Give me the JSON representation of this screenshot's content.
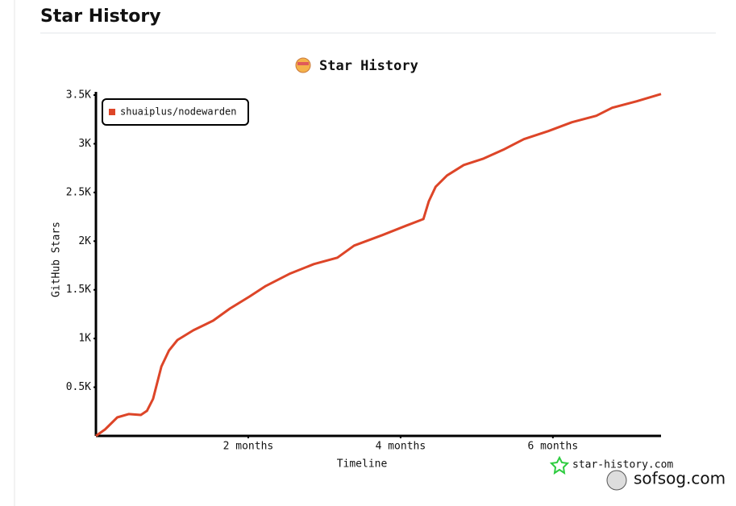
{
  "header": {
    "title": "Star History"
  },
  "chart_data": {
    "type": "line",
    "title": "Star History",
    "x_label": "Timeline",
    "y_label": "GitHub Stars",
    "x": [
      0,
      0.12,
      0.28,
      0.43,
      0.59,
      0.67,
      0.75,
      0.86,
      0.96,
      1.07,
      1.28,
      1.54,
      1.76,
      2.02,
      2.23,
      2.54,
      2.86,
      3.17,
      3.39,
      3.76,
      4.08,
      4.3,
      4.37,
      4.46,
      4.61,
      4.83,
      5.09,
      5.35,
      5.62,
      5.94,
      6.25,
      6.57,
      6.78,
      7.1,
      7.42
    ],
    "series": [
      {
        "name": "shuaiplus/nodewarden",
        "color": "#dd4528",
        "values": [
          0,
          66,
          190,
          224,
          215,
          257,
          381,
          712,
          878,
          985,
          1085,
          1184,
          1308,
          1432,
          1540,
          1664,
          1764,
          1830,
          1954,
          2062,
          2161,
          2227,
          2409,
          2558,
          2674,
          2782,
          2848,
          2939,
          3047,
          3130,
          3221,
          3287,
          3370,
          3436,
          3511
        ]
      }
    ],
    "xlim": [
      0,
      7.42
    ],
    "xticks": [
      {
        "value": 2,
        "label": "2 months"
      },
      {
        "value": 4,
        "label": "4 months"
      },
      {
        "value": 6,
        "label": "6 months"
      }
    ],
    "ylim": [
      0,
      3500
    ],
    "yticks": [
      {
        "value": 500,
        "label": "0.5K"
      },
      {
        "value": 1000,
        "label": "1K"
      },
      {
        "value": 1500,
        "label": "1.5K"
      },
      {
        "value": 2000,
        "label": "2K"
      },
      {
        "value": 2500,
        "label": "2.5K"
      },
      {
        "value": 3000,
        "label": "3K"
      },
      {
        "value": 3500,
        "label": "3.5K"
      }
    ],
    "legend": "top-left",
    "credit": "star-history.com"
  },
  "watermark": "sofsog.com"
}
